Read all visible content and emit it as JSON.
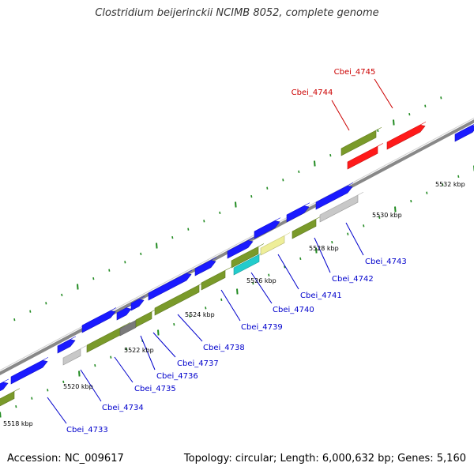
{
  "title": "Clostridium beijerinckii NCIMB 8052, complete genome",
  "footer": {
    "accession": "Accession: NC_009617",
    "summary": "Topology: circular; Length: 6,000,632 bp; Genes: 5,160"
  },
  "colors": {
    "forward": "#1a1aff",
    "reverse": "#7a9a2a",
    "grey": "#c8c8c8",
    "darkgrey": "#7a7a7a",
    "cyan": "#22cccc",
    "pale": "#eeee99",
    "red": "#ff1a1a",
    "tick": "#228b22",
    "backbone": "#888888",
    "label_blue": "#0000cc",
    "label_red": "#cc0000"
  },
  "scale_labels": [
    "5518 kbp",
    "5520 kbp",
    "5522 kbp",
    "5524 kbp",
    "5526 kbp",
    "5528 kbp",
    "5530 kbp",
    "5532 kbp"
  ],
  "genes": [
    {
      "name": "Cbei_4733",
      "color_key": "reverse",
      "label_color_key": "label_blue"
    },
    {
      "name": "Cbei_4734",
      "color_key": "grey",
      "label_color_key": "label_blue"
    },
    {
      "name": "Cbei_4735",
      "color_key": "reverse",
      "label_color_key": "label_blue"
    },
    {
      "name": "Cbei_4736",
      "color_key": "darkgrey",
      "label_color_key": "label_blue"
    },
    {
      "name": "Cbei_4737",
      "color_key": "reverse",
      "label_color_key": "label_blue"
    },
    {
      "name": "Cbei_4738",
      "color_key": "reverse",
      "label_color_key": "label_blue"
    },
    {
      "name": "Cbei_4739",
      "color_key": "reverse",
      "label_color_key": "label_blue"
    },
    {
      "name": "Cbei_4740",
      "color_key": "cyan",
      "label_color_key": "label_blue"
    },
    {
      "name": "Cbei_4741",
      "color_key": "pale",
      "label_color_key": "label_blue"
    },
    {
      "name": "Cbei_4742",
      "color_key": "reverse",
      "label_color_key": "label_blue"
    },
    {
      "name": "Cbei_4743",
      "color_key": "grey",
      "label_color_key": "label_blue"
    },
    {
      "name": "Cbei_4744",
      "color_key": "reverse",
      "label_color_key": "label_red"
    },
    {
      "name": "Cbei_4745",
      "color_key": "red",
      "label_color_key": "label_red"
    }
  ]
}
